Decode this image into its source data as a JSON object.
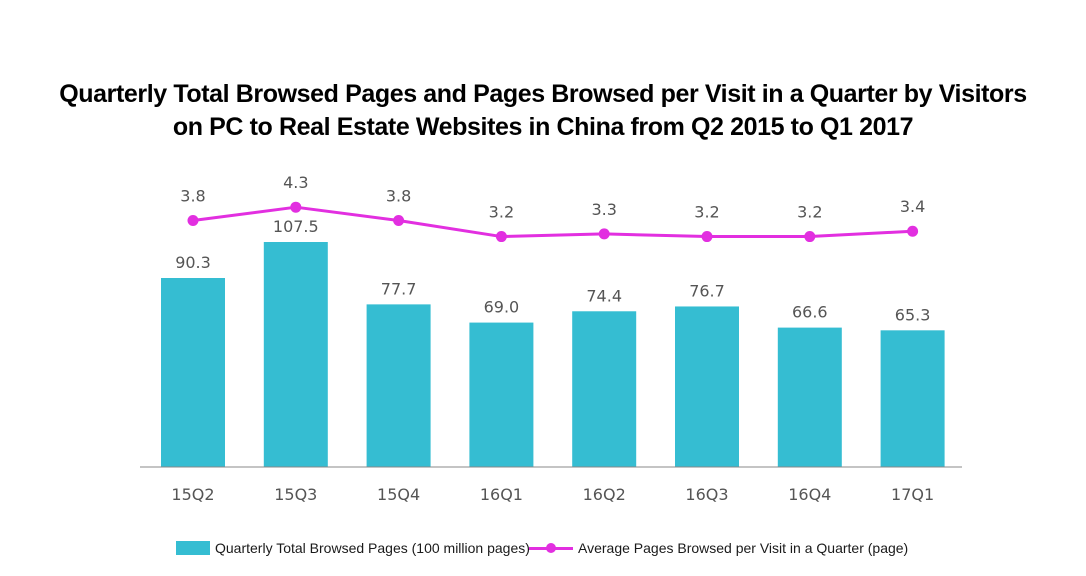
{
  "title_lines": [
    "Quarterly Total Browsed Pages and Pages Browsed per Visit in a Quarter by Visitors",
    "on PC to Real Estate Websites in China from Q2 2015 to Q1 2017"
  ],
  "colors": {
    "bar": "#35bdd2",
    "line": "#e22fe0",
    "axis": "#888888",
    "label": "#555555"
  },
  "chart_data": {
    "type": "bar",
    "title": "Quarterly Total Browsed Pages and Pages Browsed per Visit in a Quarter by Visitors on PC to Real Estate Websites in China from Q2 2015 to Q1 2017",
    "categories": [
      "15Q2",
      "15Q3",
      "15Q4",
      "16Q1",
      "16Q2",
      "16Q3",
      "16Q4",
      "17Q1"
    ],
    "series": [
      {
        "name": "Quarterly Total Browsed Pages (100 million pages)",
        "type": "bar",
        "values": [
          90.3,
          107.5,
          77.7,
          69.0,
          74.4,
          76.7,
          66.6,
          65.3
        ],
        "labels": [
          "90.3",
          "107.5",
          "77.7",
          "69.0",
          "74.4",
          "76.7",
          "66.6",
          "65.3"
        ]
      },
      {
        "name": "Average Pages Browsed per Visit in a Quarter (page)",
        "type": "line",
        "values": [
          3.8,
          4.3,
          3.8,
          3.2,
          3.3,
          3.2,
          3.2,
          3.4
        ],
        "labels": [
          "3.8",
          "4.3",
          "3.8",
          "3.2",
          "3.3",
          "3.2",
          "3.2",
          "3.4"
        ]
      }
    ],
    "bar_ylim": [
      0,
      120
    ],
    "line_ylim": [
      0,
      14
    ],
    "grid": false,
    "legend_position": "bottom"
  },
  "legend": {
    "bar_label": "Quarterly Total Browsed Pages (100 million pages)",
    "line_label": "Average Pages Browsed per Visit in a Quarter (page)"
  }
}
